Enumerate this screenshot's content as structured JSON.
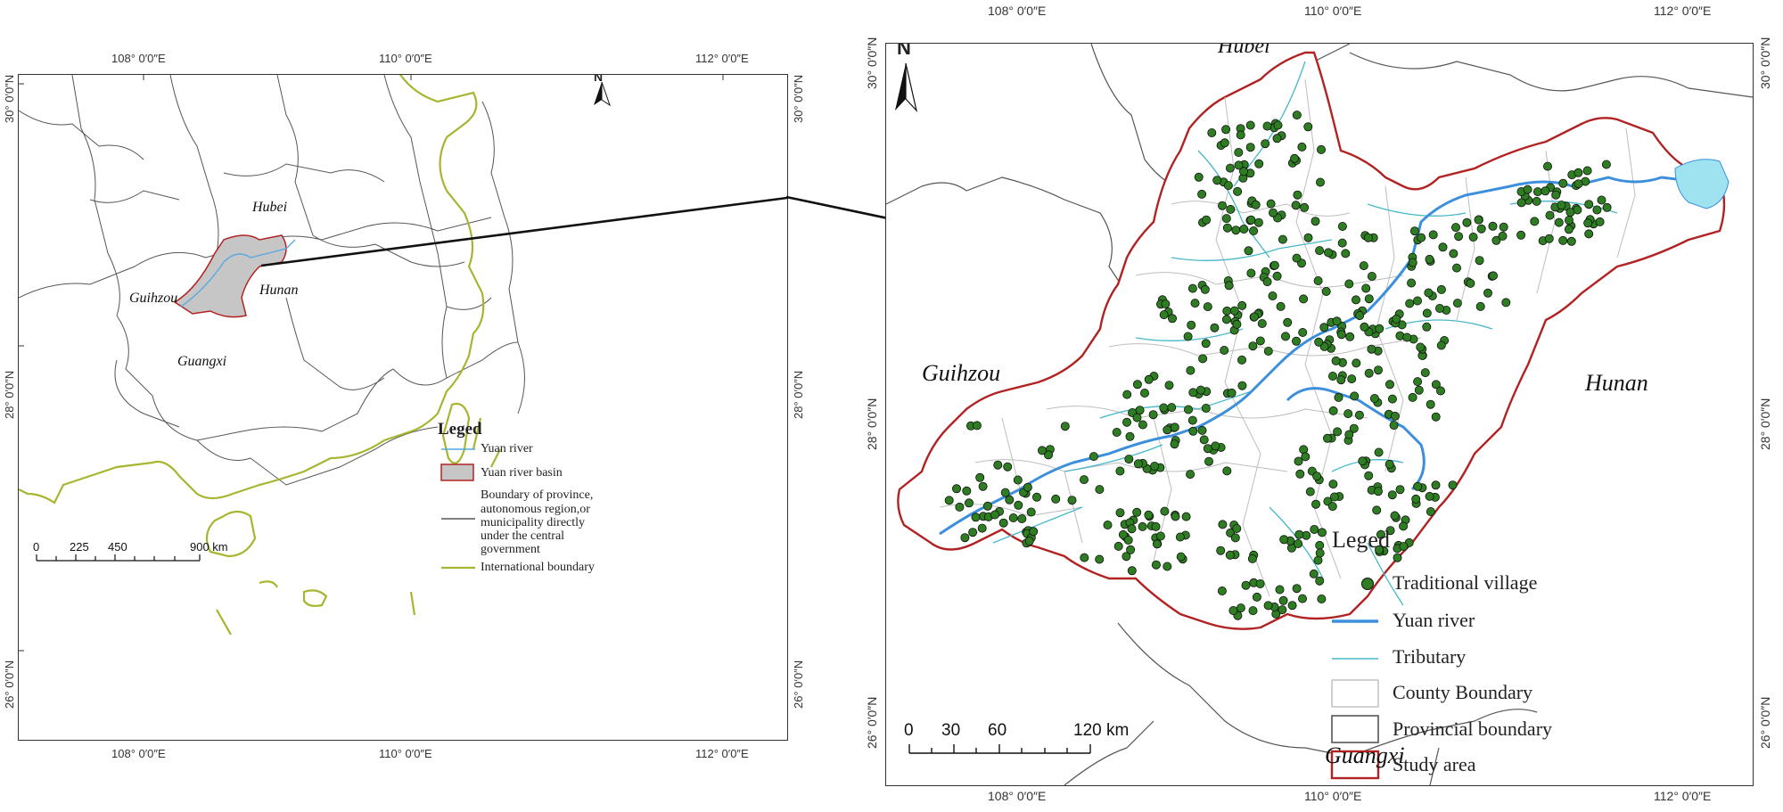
{
  "left_map": {
    "coords_top": [
      "108° 0′0″E",
      "110° 0′0″E",
      "112° 0′0″E"
    ],
    "coords_bottom": [
      "108° 0′0″E",
      "110° 0′0″E",
      "112° 0′0″E"
    ],
    "coords_left": [
      "30° 0′0″N",
      "28° 0′0″N",
      "26° 0′0″N"
    ],
    "coords_right": [
      "30° 0′0″N",
      "28° 0′0″N",
      "26° 0′0″N"
    ],
    "north": "N",
    "provinces": {
      "hubei": "Hubei",
      "guihzou": "Guihzou",
      "hunan": "Hunan",
      "guangxi": "Guangxi"
    },
    "legend": {
      "title": "Leged",
      "items": [
        "Yuan river",
        "Yuan river basin",
        "Boundary of province,",
        "autonomous region,or",
        "municipality directly",
        "under the central",
        "government",
        "International boundary"
      ]
    },
    "scale": {
      "labels": [
        "0",
        "225",
        "450",
        "900 km"
      ]
    },
    "colors": {
      "international": "#a8b530",
      "river": "#5aa8e0",
      "basin_fill": "#c6c6c6",
      "basin_edge": "#b22222",
      "boundary": "#555555"
    }
  },
  "right_map": {
    "coords_top": [
      "108° 0′0″E",
      "110° 0′0″E",
      "112° 0′0″E"
    ],
    "coords_bottom": [
      "108° 0′0″E",
      "110° 0′0″E",
      "112° 0′0″E"
    ],
    "coords_left": [
      "30° 0′0″N",
      "28° 0′0″N",
      "26° 0′0″N"
    ],
    "coords_right": [
      "30° 0′0″N",
      "28° 0′0″N",
      "26° 0′0″N"
    ],
    "north": "N",
    "provinces": {
      "hubei": "Hubei",
      "guihzou": "Guihzou",
      "hunan": "Hunan",
      "guangxi": "Guangxi"
    },
    "legend": {
      "title": "Leged",
      "items": [
        "Traditional village",
        "Yuan river",
        "Tributary",
        "County Boundary",
        "Provincial boundary",
        "Study area"
      ]
    },
    "scale": {
      "labels": [
        "0",
        "30",
        "60",
        "120 km"
      ]
    },
    "colors": {
      "village": "#2e7d22",
      "river": "#3b8fdc",
      "tributary": "#47b8c8",
      "county": "#bdbdbd",
      "provincial": "#555555",
      "study": "#b22222",
      "lake": "#9fe3f0"
    }
  }
}
